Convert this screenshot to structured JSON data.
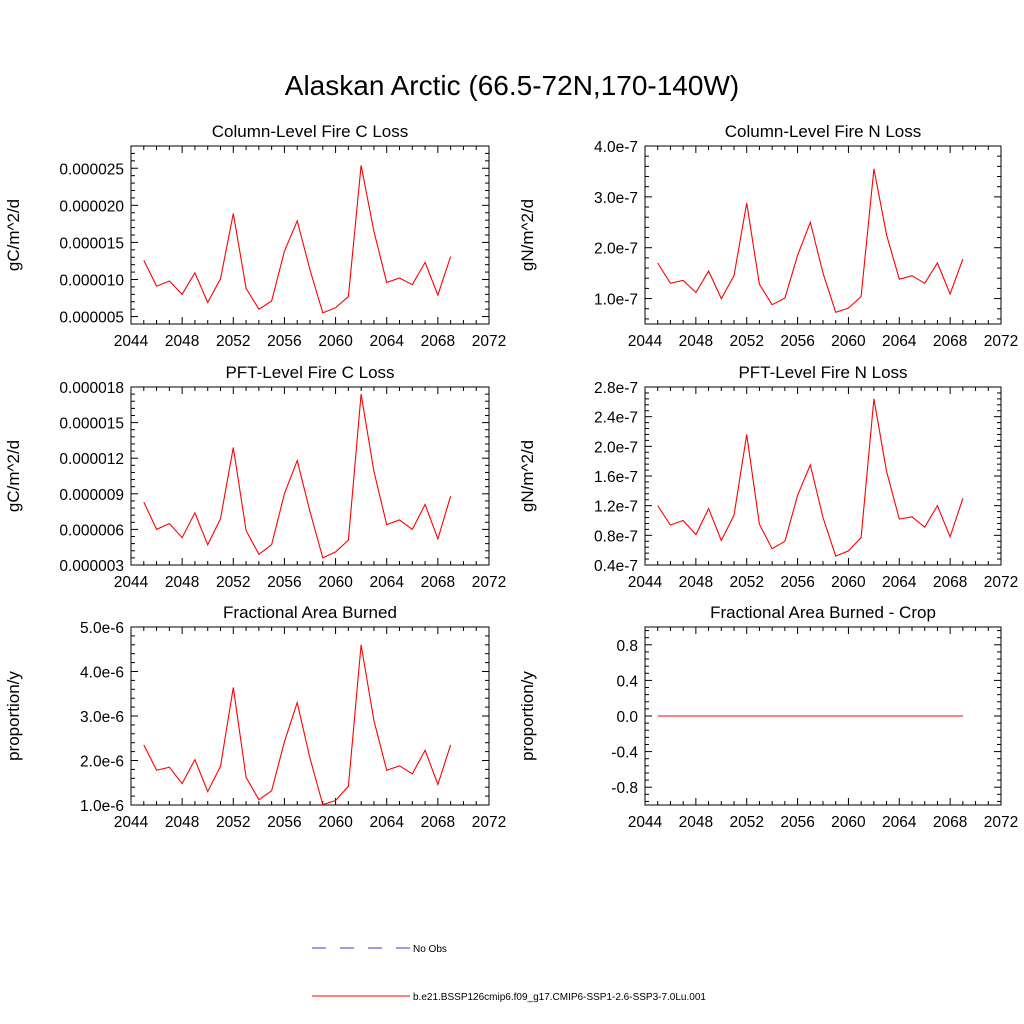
{
  "title": "Alaskan Arctic (66.5-72N,170-140W)",
  "colors": {
    "series": "#ff0000",
    "obs": "#3a3ad0",
    "axis": "#000000"
  },
  "legend": {
    "obs_label": "No Obs",
    "model_label": "b.e21.BSSP126cmip6.f09_g17.CMIP6-SSP1-2.6-SSP3-7.0Lu.001"
  },
  "chart_data": [
    {
      "type": "line",
      "title": "Column-Level Fire C Loss",
      "ylabel": "gC/m^2/d",
      "xlim": [
        2044,
        2072
      ],
      "ylim": [
        4e-06,
        2.8e-05
      ],
      "x_ticks": [
        "2044",
        "2048",
        "2052",
        "2056",
        "2060",
        "2064",
        "2068",
        "2072"
      ],
      "y_ticks": [
        {
          "value": 5e-06,
          "label": "0.000005"
        },
        {
          "value": 1e-05,
          "label": "0.000010"
        },
        {
          "value": 1.5e-05,
          "label": "0.000015"
        },
        {
          "value": 2e-05,
          "label": "0.000020"
        },
        {
          "value": 2.5e-05,
          "label": "0.000025"
        }
      ],
      "x": [
        2045,
        2046,
        2047,
        2048,
        2049,
        2050,
        2051,
        2052,
        2053,
        2054,
        2055,
        2056,
        2057,
        2058,
        2059,
        2060,
        2061,
        2062,
        2063,
        2064,
        2065,
        2066,
        2067,
        2068,
        2069
      ],
      "values": [
        1.26e-05,
        9.1e-06,
        9.8e-06,
        8e-06,
        1.09e-05,
        6.9e-06,
        1.01e-05,
        1.89e-05,
        8.8e-06,
        6e-06,
        7.1e-06,
        1.38e-05,
        1.79e-05,
        1.13e-05,
        5.5e-06,
        6.2e-06,
        7.7e-06,
        2.54e-05,
        1.65e-05,
        9.6e-06,
        1.02e-05,
        9.3e-06,
        1.23e-05,
        7.9e-06,
        1.31e-05
      ]
    },
    {
      "type": "line",
      "title": "Column-Level Fire N Loss",
      "ylabel": "gN/m^2/d",
      "xlim": [
        2044,
        2072
      ],
      "ylim": [
        5e-08,
        4e-07
      ],
      "x_ticks": [
        "2044",
        "2048",
        "2052",
        "2056",
        "2060",
        "2064",
        "2068",
        "2072"
      ],
      "y_ticks": [
        {
          "value": 1e-07,
          "label": "1.0e-7"
        },
        {
          "value": 2e-07,
          "label": "2.0e-7"
        },
        {
          "value": 3e-07,
          "label": "3.0e-7"
        },
        {
          "value": 4e-07,
          "label": "4.0e-7"
        }
      ],
      "x": [
        2045,
        2046,
        2047,
        2048,
        2049,
        2050,
        2051,
        2052,
        2053,
        2054,
        2055,
        2056,
        2057,
        2058,
        2059,
        2060,
        2061,
        2062,
        2063,
        2064,
        2065,
        2066,
        2067,
        2068,
        2069
      ],
      "values": [
        1.7e-07,
        1.3e-07,
        1.36e-07,
        1.12e-07,
        1.54e-07,
        1e-07,
        1.45e-07,
        2.88e-07,
        1.28e-07,
        8.8e-08,
        1.01e-07,
        1.85e-07,
        2.5e-07,
        1.5e-07,
        7.3e-08,
        8.1e-08,
        1.04e-07,
        3.55e-07,
        2.25e-07,
        1.38e-07,
        1.45e-07,
        1.3e-07,
        1.7e-07,
        1.09e-07,
        1.78e-07
      ]
    },
    {
      "type": "line",
      "title": "PFT-Level Fire C Loss",
      "ylabel": "gC/m^2/d",
      "xlim": [
        2044,
        2072
      ],
      "ylim": [
        3e-06,
        1.8e-05
      ],
      "x_ticks": [
        "2044",
        "2048",
        "2052",
        "2056",
        "2060",
        "2064",
        "2068",
        "2072"
      ],
      "y_ticks": [
        {
          "value": 3e-06,
          "label": "0.000003"
        },
        {
          "value": 6e-06,
          "label": "0.000006"
        },
        {
          "value": 9e-06,
          "label": "0.000009"
        },
        {
          "value": 1.2e-05,
          "label": "0.000012"
        },
        {
          "value": 1.5e-05,
          "label": "0.000015"
        },
        {
          "value": 1.8e-05,
          "label": "0.000018"
        }
      ],
      "x": [
        2045,
        2046,
        2047,
        2048,
        2049,
        2050,
        2051,
        2052,
        2053,
        2054,
        2055,
        2056,
        2057,
        2058,
        2059,
        2060,
        2061,
        2062,
        2063,
        2064,
        2065,
        2066,
        2067,
        2068,
        2069
      ],
      "values": [
        8.3e-06,
        6e-06,
        6.5e-06,
        5.3e-06,
        7.4e-06,
        4.7e-06,
        6.9e-06,
        1.29e-05,
        5.9e-06,
        3.9e-06,
        4.7e-06,
        9e-06,
        1.18e-05,
        7.5e-06,
        3.6e-06,
        4.1e-06,
        5.1e-06,
        1.74e-05,
        1.09e-05,
        6.4e-06,
        6.8e-06,
        6e-06,
        8.1e-06,
        5.2e-06,
        8.8e-06
      ]
    },
    {
      "type": "line",
      "title": "PFT-Level Fire N Loss",
      "ylabel": "gN/m^2/d",
      "xlim": [
        2044,
        2072
      ],
      "ylim": [
        4e-08,
        2.8e-07
      ],
      "x_ticks": [
        "2044",
        "2048",
        "2052",
        "2056",
        "2060",
        "2064",
        "2068",
        "2072"
      ],
      "y_ticks": [
        {
          "value": 4e-08,
          "label": "0.4e-7"
        },
        {
          "value": 8e-08,
          "label": "0.8e-7"
        },
        {
          "value": 1.2e-07,
          "label": "1.2e-7"
        },
        {
          "value": 1.6e-07,
          "label": "1.6e-7"
        },
        {
          "value": 2e-07,
          "label": "2.0e-7"
        },
        {
          "value": 2.4e-07,
          "label": "2.4e-7"
        },
        {
          "value": 2.8e-07,
          "label": "2.8e-7"
        }
      ],
      "x": [
        2045,
        2046,
        2047,
        2048,
        2049,
        2050,
        2051,
        2052,
        2053,
        2054,
        2055,
        2056,
        2057,
        2058,
        2059,
        2060,
        2061,
        2062,
        2063,
        2064,
        2065,
        2066,
        2067,
        2068,
        2069
      ],
      "values": [
        1.2e-07,
        9.4e-08,
        1e-07,
        8.1e-08,
        1.16e-07,
        7.3e-08,
        1.07e-07,
        2.16e-07,
        9.5e-08,
        6.2e-08,
        7.2e-08,
        1.34e-07,
        1.75e-07,
        1.04e-07,
        5.2e-08,
        5.9e-08,
        7.7e-08,
        2.64e-07,
        1.66e-07,
        1.02e-07,
        1.05e-07,
        9.1e-08,
        1.2e-07,
        7.8e-08,
        1.3e-07
      ]
    },
    {
      "type": "line",
      "title": "Fractional Area Burned",
      "ylabel": "proportion/y",
      "xlim": [
        2044,
        2072
      ],
      "ylim": [
        1e-06,
        5e-06
      ],
      "x_ticks": [
        "2044",
        "2048",
        "2052",
        "2056",
        "2060",
        "2064",
        "2068",
        "2072"
      ],
      "y_ticks": [
        {
          "value": 1e-06,
          "label": "1.0e-6"
        },
        {
          "value": 2e-06,
          "label": "2.0e-6"
        },
        {
          "value": 3e-06,
          "label": "3.0e-6"
        },
        {
          "value": 4e-06,
          "label": "4.0e-6"
        },
        {
          "value": 5e-06,
          "label": "5.0e-6"
        }
      ],
      "x": [
        2045,
        2046,
        2047,
        2048,
        2049,
        2050,
        2051,
        2052,
        2053,
        2054,
        2055,
        2056,
        2057,
        2058,
        2059,
        2060,
        2061,
        2062,
        2063,
        2064,
        2065,
        2066,
        2067,
        2068,
        2069
      ],
      "values": [
        2.35e-06,
        1.78e-06,
        1.85e-06,
        1.48e-06,
        2.02e-06,
        1.3e-06,
        1.87e-06,
        3.64e-06,
        1.62e-06,
        1.12e-06,
        1.32e-06,
        2.42e-06,
        3.3e-06,
        2.05e-06,
        1.01e-06,
        1.1e-06,
        1.42e-06,
        4.6e-06,
        2.9e-06,
        1.78e-06,
        1.88e-06,
        1.7e-06,
        2.23e-06,
        1.46e-06,
        2.35e-06
      ]
    },
    {
      "type": "line",
      "title": "Fractional Area Burned - Crop",
      "ylabel": "proportion/y",
      "xlim": [
        2044,
        2072
      ],
      "ylim": [
        -1.0,
        1.0
      ],
      "x_ticks": [
        "2044",
        "2048",
        "2052",
        "2056",
        "2060",
        "2064",
        "2068",
        "2072"
      ],
      "y_ticks": [
        {
          "value": -0.8,
          "label": "-0.8"
        },
        {
          "value": -0.4,
          "label": "-0.4"
        },
        {
          "value": 0.0,
          "label": "0.0"
        },
        {
          "value": 0.4,
          "label": "0.4"
        },
        {
          "value": 0.8,
          "label": "0.8"
        }
      ],
      "x": [
        2045,
        2046,
        2047,
        2048,
        2049,
        2050,
        2051,
        2052,
        2053,
        2054,
        2055,
        2056,
        2057,
        2058,
        2059,
        2060,
        2061,
        2062,
        2063,
        2064,
        2065,
        2066,
        2067,
        2068,
        2069
      ],
      "values": [
        0,
        0,
        0,
        0,
        0,
        0,
        0,
        0,
        0,
        0,
        0,
        0,
        0,
        0,
        0,
        0,
        0,
        0,
        0,
        0,
        0,
        0,
        0,
        0,
        0
      ]
    }
  ]
}
